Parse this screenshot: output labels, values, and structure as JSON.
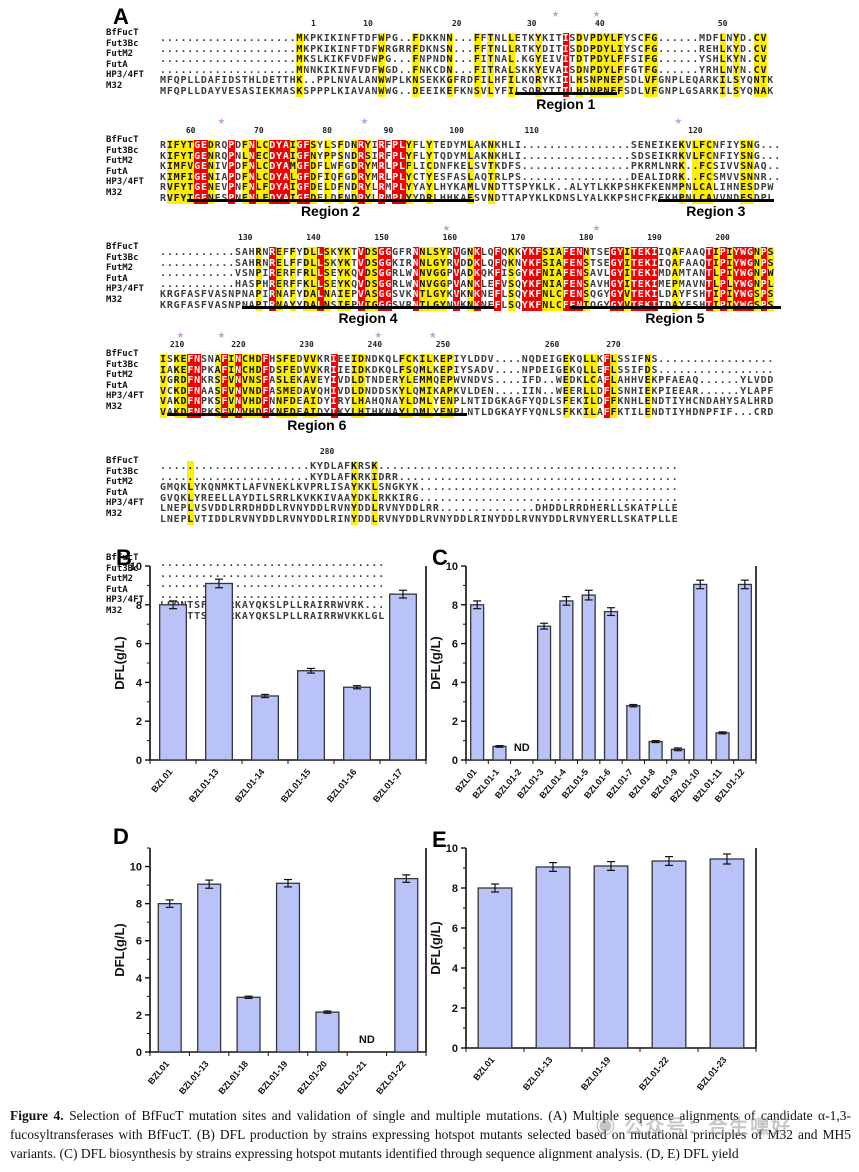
{
  "panels": {
    "a": "A",
    "b": "B",
    "c": "C",
    "d": "D",
    "e": "E"
  },
  "colors": {
    "bar_fill": "#b9c3f7",
    "bar_stroke": "#34343f",
    "axis": "#111111",
    "identical_bg": "#f20000",
    "similar_bg": "#ffee00",
    "star": "#c9a0dc"
  },
  "alignment": {
    "names": [
      "BfFucT",
      "Fut3Bc",
      "FutM2",
      "FutA",
      "HP3/4FT",
      "M32"
    ],
    "blocks": [
      {
        "ticks": [
          [
            22,
            "1"
          ],
          [
            30,
            "10"
          ],
          [
            43,
            "20"
          ],
          [
            54,
            "30"
          ],
          [
            64,
            "40"
          ],
          [
            82,
            "50"
          ]
        ],
        "stars": [
          58,
          64
        ],
        "rows": [
          "....................MKPKIKINFTDFWPG..FDKKNN...FFTNLLETKYKITISDVPDYLFYSCFG......MDFLNYD.CV",
          "....................MKPKIKINFTDFWRGRRFDKNSN...FFTNLLRTKYDITISDDPDYLIYSCFG......REHLKYD.CV",
          "....................MKSLKIKFVDFWPG...FNPNDN...FITNAL.KGYEIVITDTPDYLFFSIFG......YSHLKYN.CV",
          "....................MNNKIKINFVDFWGD..FNKCDN...FITRALSKKYEVAISDNPDYLFFGTFG......YRHLNYN.CV",
          "MFQPLLDAFIDSTHLDETTHK..PPLNVALANWWPLKNSEKKGFRDFILHFILKQRYKIILHSNPNEPSDLVFGNPLEQARKILSYQNTK",
          "MFQPLLDAYVESASIEKMASKSPPPLKIAVANWWG..DEEIKEFKNSVLYFILSQRYTIILHQNPNEFSDLVFGNPLGSARKILSYQNAK"
        ],
        "regions": [
          {
            "label": "Region 1",
            "s": 52,
            "e": 66
          }
        ]
      },
      {
        "ticks": [
          [
            4,
            "60"
          ],
          [
            14,
            "70"
          ],
          [
            24,
            "80"
          ],
          [
            33,
            "90"
          ],
          [
            43,
            "100"
          ],
          [
            54,
            "110"
          ],
          [
            78,
            "120"
          ]
        ],
        "stars": [
          9,
          30,
          76
        ],
        "rows": [
          "RIFYTGEDRQPDFNLCDYAIGFSYLSFDNRYIRFPLYFLYTEDYMLAKNKHLI................SENEIKEKVLFCNFIYSNG...",
          "KIFYTGENRQPNLNECDYAIGFNYPPSNDRSIRFPLYFLYTQDYMLAKNKHLI................SDSEIKRKVLFCNFIYSNG...",
          "KIMFVGENIVPDFNLCDYAMGFDFLWFGDRYMRLPLFLICDNFKELSVTKDFS................PKRMLNRK..FCSIVVSNAQ..",
          "KIMFIGENIAPDFNLCDYALGFDFIQFGDRYMRLPLYCTYESFASLAQTRLPS................DEALIDRK..FCSMVVSNNR..",
          "RVFYTGENEVPNFNLFDYAIGFDELDFNDRYLRMPLYYAYLHYKAMLVNDTTSPYKLK..ALYTLKKPSHKFKENMPNLCALIHNESDPW",
          "RVFYTGENESPNFNLFDYAIGFDELDFNDRYLRMPLYYDRLHHKAESVNDTTAPYKLKDNSLYALKKPSHCFKEKHPNLCAVVNDESDPL"
        ],
        "regions": [
          {
            "label": "Region 2",
            "s": 4,
            "e": 45
          },
          {
            "label": "Region 3",
            "s": 73,
            "e": 89
          }
        ]
      },
      {
        "ticks": [
          [
            12,
            "130"
          ],
          [
            22,
            "140"
          ],
          [
            32,
            "150"
          ],
          [
            42,
            "160"
          ],
          [
            52,
            "170"
          ],
          [
            62,
            "180"
          ],
          [
            72,
            "190"
          ],
          [
            82,
            "200"
          ]
        ],
        "stars": [
          42,
          64
        ],
        "rows": [
          "...........SAHRNREFFYDLLSKYKTVDSGGGFRNNLSYRVGNKLQFQKKYKFSIAFENNTSEGYITEKIIQAFAAQTIPIYWGNPS",
          "...........SAHRNRELFFDLLSKYKTVDSGGKIRNNLGYRVDDKLQFQKNYKFSIAFENSTSEGYITEKIIQAFAAQTIPIYWGNPS",
          "...........VSNPIRERFFRLLSEYKQVDSGGRLWNNVGGPVADKQKFISGYKFNIAFENSAVLGYITEKIMDAMTANTLPIYWGNPW",
          "...........HASPHRERFFKLLSEYKQVDSGGRLWNNVGGPVANKLEFVSQYKFNIAFENSAVHGYITEKIMEPMAVNTLPLYWGNPL",
          "KRGFASFVASNPNAPIRNAFYDALNAIEPVASGGSVKNTLGYKVKNKNEFLSQYKFNLCFENSQGYGYVTEKILDAYFSHTIPIYWGSPS",
          "KRGFASFVASNPNAPIRNAYYDALNSIEPVTGGGSVRNTLGYNVKNKNEFLSQYKFNLCFENTQGYGYVTEKIIDAYFSHTIPIYWGSPS"
        ],
        "regions": [
          {
            "label": "Region 4",
            "s": 12,
            "e": 48
          },
          {
            "label": "Region 5",
            "s": 60,
            "e": 90
          }
        ]
      },
      {
        "ticks": [
          [
            2,
            "210"
          ],
          [
            11,
            "220"
          ],
          [
            21,
            "230"
          ],
          [
            31,
            "240"
          ],
          [
            41,
            "250"
          ],
          [
            57,
            "260"
          ],
          [
            66,
            "270"
          ]
        ],
        "stars": [
          3,
          9,
          32,
          40
        ],
        "rows": [
          "ISKEFNSNAFINCHDFHSFEDVVKRIEEIDNDKQLFCKILKEPIYLDDV....NQDEIGEKQLLKFLSSIFNS.................",
          "IAKEFNPKAFINCHDFDSFEDVVKRIIEIDKDKQLFSQMLKEPIYSADV....NPDEIGEKQLLEFLSSIFDS.................",
          "VGRDFNKRSFVNVNSFASLEKAVEYIVDLDTNDERYLEMMQEPWVNDVS....IFD..WEDKLCAFLAHHVEKPFAEAQ......YLVDD",
          "VCKDFNAASFVNVNDFASMEDAVQHIVDLDNDDSKYLQMIKAPKVLDEN....IIN..WEERLLDFLSNHIEKPIEEAR......YLAPF",
          "VAKDFNPKSFVNVHDFNNFDEAIDYIRYLHAHQNAYLDMLYENPLNTIDGKAGFYQDLSFEKILDFFKNHLENDTIYHCNDAHYSALHRD",
          "VAKDFNPKSFVNVHDFKNFDEAIDYIKYLHTHKNAYLDMLYENPLNTLDGKAYFYQNLSFKKILAFFKTILENDTIYHDNPFIF...CRD"
        ],
        "regions": [
          {
            "label": "Region 6",
            "s": 1,
            "e": 44
          }
        ]
      },
      {
        "ticks": [
          [
            24,
            "280"
          ]
        ],
        "stars": [],
        "rows": [
          "......................KYDLAFKRSK............................................",
          "......................KYDLAFKRKIDRR.........................................",
          "GMQKLYKQNMKTLAFVNEKLKVPRLISAYKKLSNGKYK......................................",
          "GVQKLYREELLAYDILSRRLKVKKIVAAYDKLRKKIRG......................................",
          "LNEPLVSVDDLRRDHDDLRVNYDDLRVNYDDLRVNYDDLRR..............DHDDLRRDHERLLSKATPLLE",
          "LNEPLVTIDDLRVNYDDLRVNYDDLRINYDDLRVNYDDLRVNYDDLRINYDDLRVNYDDLRVNYERLLSKATPLLE"
        ],
        "regions": []
      },
      {
        "gap": 16,
        "ticks": [],
        "stars": [],
        "rows": [
          ".................................",
          ".................................",
          ".................................",
          ".................................",
          "LSQNTSFKIYRKAYQKSLPLLRAIRRWVRK...",
          "LSQNTTSKIYRKAYQKSLPLLRAIRRWVKKLGL"
        ],
        "regions": []
      }
    ]
  },
  "chart_data": [
    {
      "panel": "B",
      "type": "bar",
      "categories": [
        "BZL01",
        "BZL01-13",
        "BZL01-14",
        "BZL01-15",
        "BZL01-16",
        "BZL01-17"
      ],
      "values": [
        8.0,
        9.1,
        3.3,
        4.6,
        3.75,
        8.55
      ],
      "errors": [
        0.2,
        0.22,
        0.08,
        0.12,
        0.08,
        0.2
      ],
      "title": "",
      "xlabel": "",
      "ylabel": "DFL(g/L)",
      "ylim": [
        0,
        10
      ],
      "yticks": [
        0,
        2,
        4,
        6,
        8,
        10
      ],
      "nd_label": "ND",
      "grid": false,
      "legend": "none"
    },
    {
      "panel": "C",
      "type": "bar",
      "categories": [
        "BZL01",
        "BZL01-1",
        "BZL01-2",
        "BZL01-3",
        "BZL01-4",
        "BZL01-5",
        "BZL01-6",
        "BZL01-7",
        "BZL01-8",
        "BZL01-9",
        "BZL01-10",
        "BZL01-11",
        "BZL01-12"
      ],
      "values": [
        8.0,
        0.7,
        null,
        6.9,
        8.2,
        8.5,
        7.65,
        2.8,
        0.95,
        0.55,
        9.05,
        1.4,
        9.05
      ],
      "errors": [
        0.2,
        0.04,
        null,
        0.15,
        0.22,
        0.25,
        0.2,
        0.06,
        0.05,
        0.07,
        0.22,
        0.05,
        0.22
      ],
      "title": "",
      "xlabel": "",
      "ylabel": "DFL(g/L)",
      "ylim": [
        0,
        10
      ],
      "yticks": [
        0,
        2,
        4,
        6,
        8,
        10
      ],
      "nd_label": "ND",
      "grid": false,
      "legend": "none"
    },
    {
      "panel": "D",
      "type": "bar",
      "categories": [
        "BZL01",
        "BZL01-13",
        "BZL01-18",
        "BZL01-19",
        "BZL01-20",
        "BZL01-21",
        "BZL01-22"
      ],
      "values": [
        8.0,
        9.05,
        2.95,
        9.1,
        2.15,
        null,
        9.35
      ],
      "errors": [
        0.2,
        0.22,
        0.06,
        0.2,
        0.06,
        null,
        0.2
      ],
      "title": "",
      "xlabel": "",
      "ylabel": "DFL(g/L)",
      "ylim": [
        0,
        11
      ],
      "yticks": [
        0,
        2,
        4,
        6,
        8,
        10
      ],
      "nd_label": "ND",
      "grid": false,
      "legend": "none"
    },
    {
      "panel": "E",
      "type": "bar",
      "categories": [
        "BZL01",
        "BZL01-13",
        "BZL01-19",
        "BZL01-22",
        "BZL01-23"
      ],
      "values": [
        8.0,
        9.05,
        9.1,
        9.35,
        9.45
      ],
      "errors": [
        0.2,
        0.22,
        0.22,
        0.22,
        0.25
      ],
      "title": "",
      "xlabel": "",
      "ylabel": "DFL(g/L)",
      "ylim": [
        0,
        10
      ],
      "yticks": [
        0,
        2,
        4,
        6,
        8,
        10
      ],
      "nd_label": "ND",
      "grid": false,
      "legend": "none"
    }
  ],
  "caption": {
    "label": "Figure 4.",
    "text": " Selection of BfFucT mutation sites and validation of single and multiple mutations. (A) Multiple sequence alignments of candidate α-1,3-fucosyltransferases with BfFucT. (B) DFL production by strains expressing hotspot mutants selected based on mutational principles of M32 and MH5 variants. (C) DFL biosynthesis by strains expressing hotspot mutants identified through sequence alignment analysis. (D, E) DFL yield"
  },
  "watermark": {
    "text": "◉ 公众号：合生嘿好"
  }
}
